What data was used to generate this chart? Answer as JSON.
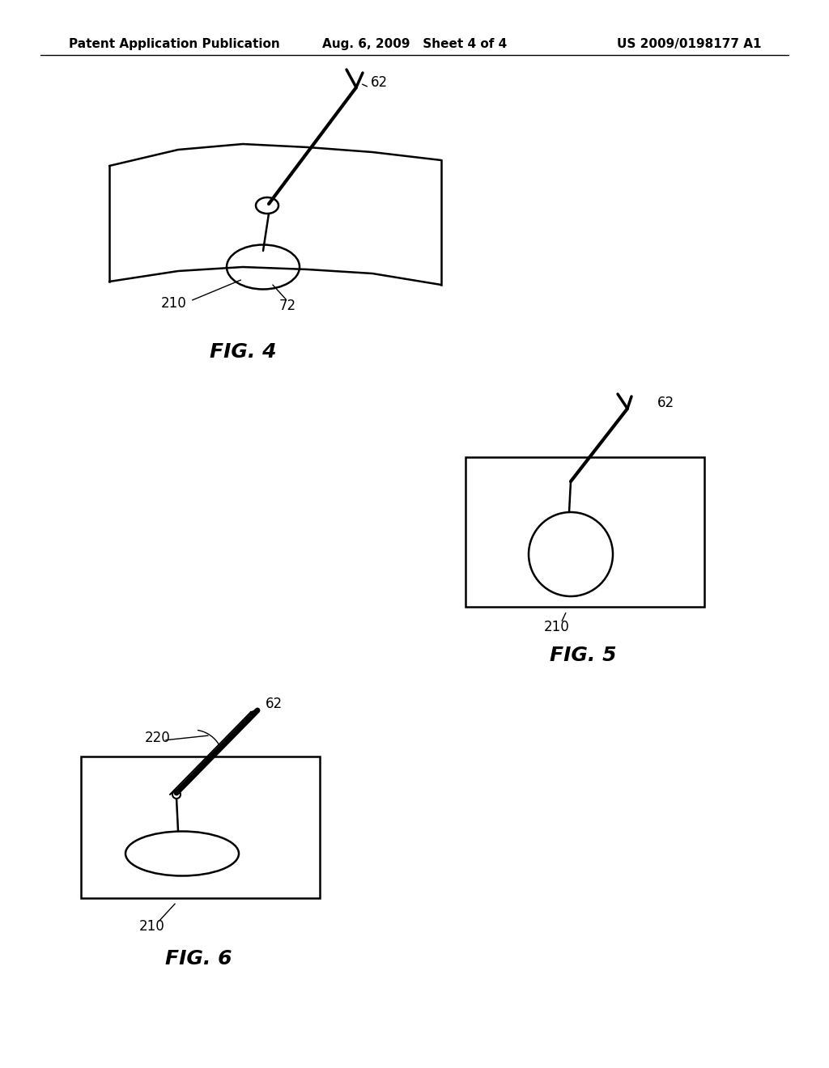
{
  "background_color": "#ffffff",
  "header_left": "Patent Application Publication",
  "header_center": "Aug. 6, 2009   Sheet 4 of 4",
  "header_right": "US 2009/0198177 A1",
  "fig4_label": "FIG. 4",
  "fig5_label": "FIG. 5",
  "fig6_label": "FIG. 6",
  "label_62": "62",
  "label_72": "72",
  "label_210": "210",
  "label_220": "220",
  "line_color": "#000000",
  "line_width": 1.8,
  "fig_label_fontsize": 18,
  "header_fontsize": 11,
  "annotation_fontsize": 12
}
